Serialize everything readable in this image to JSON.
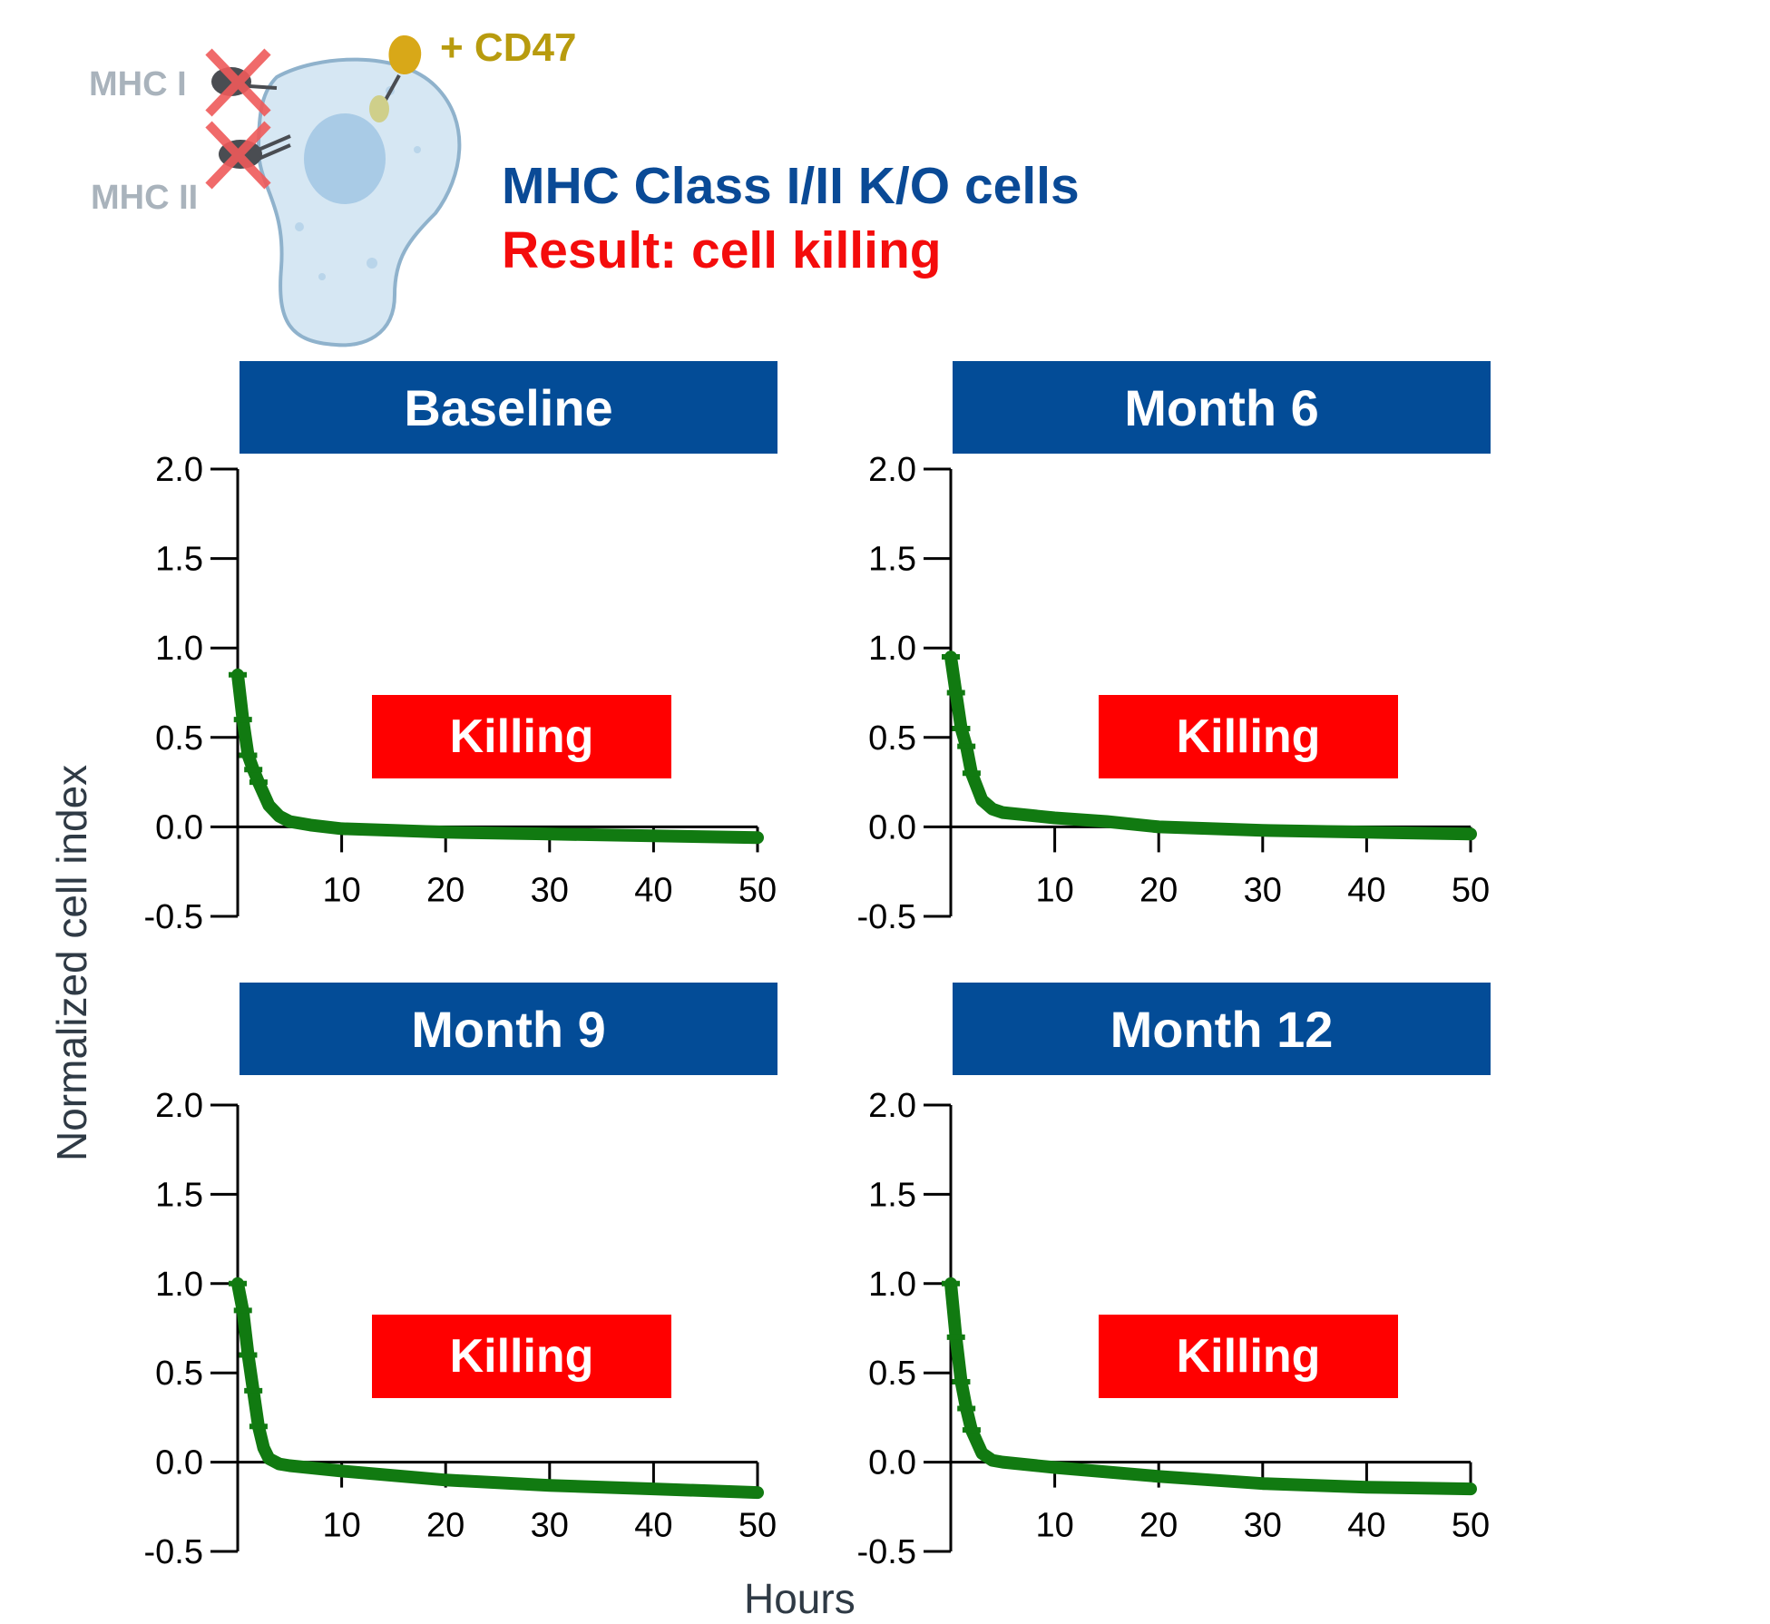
{
  "figure": {
    "mhc1_label": "MHC I",
    "mhc2_label": "MHC II",
    "cd47_label": "+ CD47",
    "title": "MHC Class I/II K/O cells",
    "result": "Result: cell killing",
    "ylabel": "Normalized cell index",
    "xlabel": "Hours",
    "colors": {
      "banner": "#034c97",
      "killing": "#ff0000",
      "curve": "#117a11",
      "title": "#0a4a96",
      "result": "#f40c0c"
    }
  },
  "chart_data": [
    {
      "type": "line",
      "title": "Baseline",
      "annotation": "Killing",
      "xlim": [
        0,
        50
      ],
      "ylim": [
        -0.5,
        2.0
      ],
      "xticks": [
        10,
        20,
        30,
        40,
        50
      ],
      "yticks": [
        "2.0",
        "1.5",
        "1.0",
        "0.5",
        "0.0",
        "-0.5"
      ],
      "series": [
        {
          "x": [
            0,
            0.5,
            1,
            1.5,
            2,
            3,
            4,
            5,
            7,
            10,
            15,
            20,
            30,
            40,
            50
          ],
          "y": [
            0.85,
            0.6,
            0.4,
            0.32,
            0.25,
            0.12,
            0.06,
            0.03,
            0.01,
            -0.01,
            -0.02,
            -0.03,
            -0.04,
            -0.05,
            -0.06
          ]
        }
      ]
    },
    {
      "type": "line",
      "title": "Month 6",
      "annotation": "Killing",
      "xlim": [
        0,
        50
      ],
      "ylim": [
        -0.5,
        2.0
      ],
      "xticks": [
        10,
        20,
        30,
        40,
        50
      ],
      "yticks": [
        "2.0",
        "1.5",
        "1.0",
        "0.5",
        "0.0",
        "-0.5"
      ],
      "series": [
        {
          "x": [
            0,
            0.5,
            1,
            1.5,
            2,
            3,
            4,
            5,
            10,
            15,
            20,
            30,
            40,
            50
          ],
          "y": [
            0.95,
            0.75,
            0.55,
            0.45,
            0.3,
            0.15,
            0.1,
            0.08,
            0.05,
            0.03,
            0.0,
            -0.02,
            -0.03,
            -0.04
          ]
        }
      ]
    },
    {
      "type": "line",
      "title": "Month 9",
      "annotation": "Killing",
      "xlim": [
        0,
        50
      ],
      "ylim": [
        -0.5,
        2.0
      ],
      "xticks": [
        10,
        20,
        30,
        40,
        50
      ],
      "yticks": [
        "2.0",
        "1.5",
        "1.0",
        "0.5",
        "0.0",
        "-0.5"
      ],
      "series": [
        {
          "x": [
            0,
            0.5,
            1,
            1.5,
            2,
            2.5,
            3,
            4,
            5,
            10,
            20,
            30,
            40,
            50
          ],
          "y": [
            1.0,
            0.85,
            0.6,
            0.4,
            0.2,
            0.08,
            0.02,
            -0.01,
            -0.02,
            -0.05,
            -0.1,
            -0.13,
            -0.15,
            -0.17
          ]
        }
      ]
    },
    {
      "type": "line",
      "title": "Month 12",
      "annotation": "Killing",
      "xlim": [
        0,
        50
      ],
      "ylim": [
        -0.5,
        2.0
      ],
      "xticks": [
        10,
        20,
        30,
        40,
        50
      ],
      "yticks": [
        "2.0",
        "1.5",
        "1.0",
        "0.5",
        "0.0",
        "-0.5"
      ],
      "series": [
        {
          "x": [
            0,
            0.5,
            1,
            1.5,
            2,
            3,
            4,
            5,
            10,
            20,
            30,
            40,
            50
          ],
          "y": [
            1.0,
            0.7,
            0.45,
            0.3,
            0.18,
            0.05,
            0.01,
            0.0,
            -0.03,
            -0.08,
            -0.12,
            -0.14,
            -0.15
          ]
        }
      ]
    }
  ]
}
